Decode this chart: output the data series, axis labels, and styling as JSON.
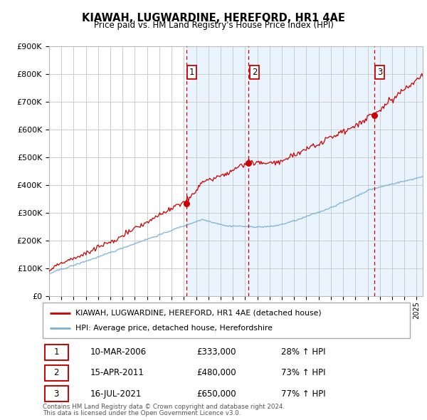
{
  "title": "KIAWAH, LUGWARDINE, HEREFORD, HR1 4AE",
  "subtitle": "Price paid vs. HM Land Registry's House Price Index (HPI)",
  "ylim": [
    0,
    900000
  ],
  "yticks": [
    0,
    100000,
    200000,
    300000,
    400000,
    500000,
    600000,
    700000,
    800000,
    900000
  ],
  "ytick_labels": [
    "£0",
    "£100K",
    "£200K",
    "£300K",
    "£400K",
    "£500K",
    "£600K",
    "£700K",
    "£800K",
    "£900K"
  ],
  "hpi_color": "#7bafd4",
  "price_color": "#cc0000",
  "shade_color": "#ddeeff",
  "transactions": [
    {
      "num": 1,
      "date": "10-MAR-2006",
      "price": 333000,
      "pct": "28%",
      "x_year": 2006.19
    },
    {
      "num": 2,
      "date": "15-APR-2011",
      "price": 480000,
      "pct": "73%",
      "x_year": 2011.29
    },
    {
      "num": 3,
      "date": "16-JUL-2021",
      "price": 650000,
      "pct": "77%",
      "x_year": 2021.54
    }
  ],
  "legend_label_red": "KIAWAH, LUGWARDINE, HEREFORD, HR1 4AE (detached house)",
  "legend_label_blue": "HPI: Average price, detached house, Herefordshire",
  "footer_line1": "Contains HM Land Registry data © Crown copyright and database right 2024.",
  "footer_line2": "This data is licensed under the Open Government Licence v3.0.",
  "xlim_start": 1995.0,
  "xlim_end": 2025.5
}
